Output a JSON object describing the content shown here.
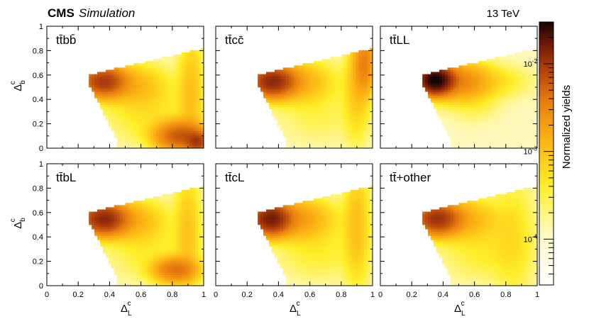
{
  "header": {
    "experiment": "CMS",
    "label": "Simulation",
    "energy": "13 TeV"
  },
  "axes": {
    "xlabel": "Δ",
    "xlabel_sub": "L",
    "xlabel_sup": "c",
    "ylabel": "Δ",
    "ylabel_sub": "b",
    "ylabel_sup": "c",
    "x_ticks": [
      "0",
      "0.2",
      "0.4",
      "0.6",
      "0.8",
      "1"
    ],
    "y_ticks": [
      "0",
      "0.2",
      "0.4",
      "0.6",
      "0.8",
      "1"
    ]
  },
  "colorbar": {
    "label": "Normalized yields",
    "tick_base": "10",
    "tick_exponents": [
      "-2",
      "-3",
      "-4"
    ],
    "range": [
      3e-05,
      0.03
    ],
    "scale": "log"
  },
  "chart_data": [
    {
      "type": "heatmap",
      "panel_label": "tt̄bb̄",
      "xlabel": "Δ_L^c",
      "ylabel": "Δ_b^c",
      "xlim": [
        0,
        1
      ],
      "ylim": [
        0,
        1
      ],
      "zscale": "log",
      "blobs": [
        {
          "x": 0.36,
          "y": 0.55,
          "sx": 0.08,
          "sy": 0.07,
          "value": 0.009
        },
        {
          "x": 0.52,
          "y": 0.52,
          "sx": 0.14,
          "sy": 0.1,
          "value": 0.0012
        },
        {
          "x": 0.85,
          "y": 0.1,
          "sx": 0.09,
          "sy": 0.07,
          "value": 0.006
        },
        {
          "x": 0.96,
          "y": 0.05,
          "sx": 0.04,
          "sy": 0.05,
          "value": 0.008
        },
        {
          "x": 0.92,
          "y": 0.45,
          "sx": 0.05,
          "sy": 0.3,
          "value": 0.0009
        },
        {
          "x": 0.65,
          "y": 0.3,
          "sx": 0.15,
          "sy": 0.15,
          "value": 0.0004
        }
      ]
    },
    {
      "type": "heatmap",
      "panel_label": "tt̄cc̄",
      "xlabel": "Δ_L^c",
      "ylabel": "Δ_b^c",
      "xlim": [
        0,
        1
      ],
      "ylim": [
        0,
        1
      ],
      "zscale": "log",
      "blobs": [
        {
          "x": 0.36,
          "y": 0.55,
          "sx": 0.08,
          "sy": 0.07,
          "value": 0.012
        },
        {
          "x": 0.5,
          "y": 0.55,
          "sx": 0.14,
          "sy": 0.1,
          "value": 0.0015
        },
        {
          "x": 0.95,
          "y": 0.7,
          "sx": 0.04,
          "sy": 0.15,
          "value": 0.003
        },
        {
          "x": 0.9,
          "y": 0.5,
          "sx": 0.05,
          "sy": 0.25,
          "value": 0.0008
        },
        {
          "x": 0.65,
          "y": 0.3,
          "sx": 0.15,
          "sy": 0.15,
          "value": 0.0002
        }
      ]
    },
    {
      "type": "heatmap",
      "panel_label": "tt̄LL",
      "xlabel": "Δ_L^c",
      "ylabel": "Δ_b^c",
      "xlim": [
        0,
        1
      ],
      "ylim": [
        0,
        1
      ],
      "zscale": "log",
      "blobs": [
        {
          "x": 0.35,
          "y": 0.56,
          "sx": 0.06,
          "sy": 0.06,
          "value": 0.03
        },
        {
          "x": 0.48,
          "y": 0.55,
          "sx": 0.12,
          "sy": 0.09,
          "value": 0.003
        },
        {
          "x": 0.7,
          "y": 0.55,
          "sx": 0.15,
          "sy": 0.08,
          "value": 0.0004
        },
        {
          "x": 0.6,
          "y": 0.38,
          "sx": 0.1,
          "sy": 0.1,
          "value": 0.0002
        }
      ]
    },
    {
      "type": "heatmap",
      "panel_label": "tt̄bL",
      "xlabel": "Δ_L^c",
      "ylabel": "Δ_b^c",
      "xlim": [
        0,
        1
      ],
      "ylim": [
        0,
        1
      ],
      "zscale": "log",
      "blobs": [
        {
          "x": 0.36,
          "y": 0.55,
          "sx": 0.08,
          "sy": 0.07,
          "value": 0.012
        },
        {
          "x": 0.5,
          "y": 0.54,
          "sx": 0.14,
          "sy": 0.1,
          "value": 0.0015
        },
        {
          "x": 0.82,
          "y": 0.13,
          "sx": 0.08,
          "sy": 0.06,
          "value": 0.004
        },
        {
          "x": 0.9,
          "y": 0.45,
          "sx": 0.05,
          "sy": 0.3,
          "value": 0.0008
        },
        {
          "x": 0.65,
          "y": 0.3,
          "sx": 0.15,
          "sy": 0.15,
          "value": 0.0003
        }
      ]
    },
    {
      "type": "heatmap",
      "panel_label": "tt̄cL",
      "xlabel": "Δ_L^c",
      "ylabel": "Δ_b^c",
      "xlim": [
        0,
        1
      ],
      "ylim": [
        0,
        1
      ],
      "zscale": "log",
      "blobs": [
        {
          "x": 0.35,
          "y": 0.55,
          "sx": 0.07,
          "sy": 0.07,
          "value": 0.015
        },
        {
          "x": 0.5,
          "y": 0.55,
          "sx": 0.14,
          "sy": 0.1,
          "value": 0.002
        },
        {
          "x": 0.9,
          "y": 0.5,
          "sx": 0.05,
          "sy": 0.3,
          "value": 0.0009
        },
        {
          "x": 0.65,
          "y": 0.3,
          "sx": 0.15,
          "sy": 0.15,
          "value": 0.0003
        }
      ]
    },
    {
      "type": "heatmap",
      "panel_label": "tt̄+other",
      "xlabel": "Δ_L^c",
      "ylabel": "Δ_b^c",
      "xlim": [
        0,
        1
      ],
      "ylim": [
        0,
        1
      ],
      "zscale": "log",
      "blobs": [
        {
          "x": 0.36,
          "y": 0.55,
          "sx": 0.08,
          "sy": 0.07,
          "value": 0.01
        },
        {
          "x": 0.5,
          "y": 0.55,
          "sx": 0.14,
          "sy": 0.1,
          "value": 0.0015
        },
        {
          "x": 0.85,
          "y": 0.4,
          "sx": 0.08,
          "sy": 0.3,
          "value": 0.0004
        },
        {
          "x": 0.65,
          "y": 0.3,
          "sx": 0.15,
          "sy": 0.15,
          "value": 0.0003
        }
      ]
    }
  ]
}
